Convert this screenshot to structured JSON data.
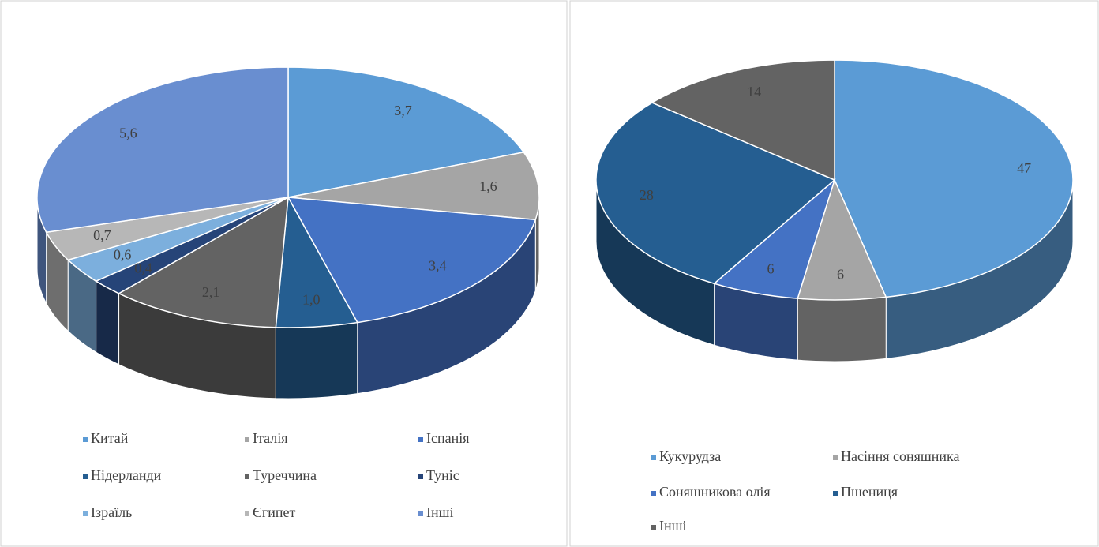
{
  "chart_data": [
    {
      "type": "pie3d",
      "categories": [
        "Китай",
        "Італія",
        "Іспанія",
        "Нідерланди",
        "Туреччина",
        "Туніс",
        "Ізраїль",
        "Єгипет",
        "Інші"
      ],
      "values": [
        3.7,
        1.6,
        3.4,
        1.0,
        2.1,
        0.4,
        0.6,
        0.7,
        5.6
      ],
      "value_labels": [
        "3,7",
        "1,6",
        "3,4",
        "1,0",
        "2,1",
        "0,4",
        "0,6",
        "0,7",
        "5,6"
      ],
      "colors": [
        "#5b9bd5",
        "#a5a5a5",
        "#4472c4",
        "#255e91",
        "#636363",
        "#264478",
        "#7cafdd",
        "#b7b7b7",
        "#698ed0"
      ]
    },
    {
      "type": "pie3d",
      "categories": [
        "Кукурудза",
        "Насіння соняшника",
        "Соняшникова олія",
        "Пшениця",
        "Інші"
      ],
      "values": [
        47,
        6,
        6,
        28,
        14
      ],
      "colors": [
        "#5b9bd5",
        "#a5a5a5",
        "#4472c4",
        "#255e91",
        "#636363"
      ]
    }
  ]
}
